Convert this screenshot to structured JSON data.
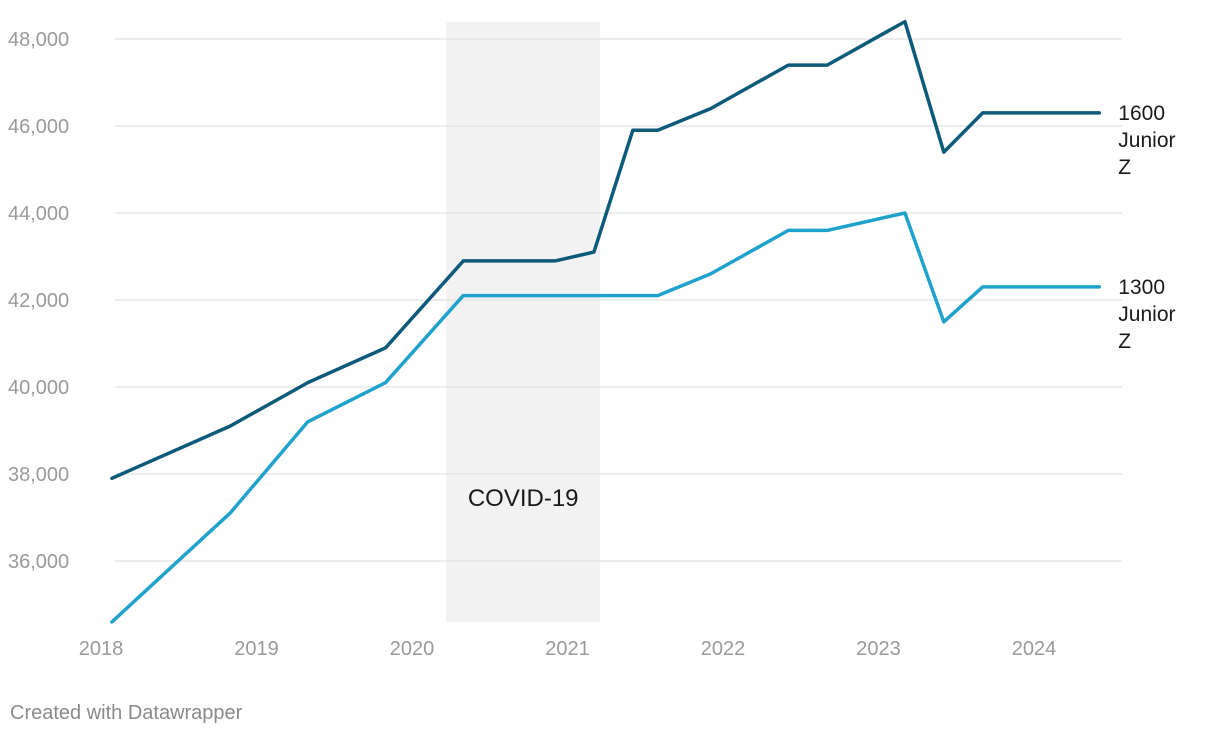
{
  "chart_data": {
    "type": "line",
    "title": "",
    "xlabel": "",
    "ylabel": "",
    "ylim": [
      34600,
      48400
    ],
    "xlim": [
      2018.0,
      2024.55
    ],
    "grid": true,
    "y_ticks": [
      36000,
      38000,
      40000,
      42000,
      44000,
      46000,
      48000
    ],
    "y_tick_labels": [
      "36,000",
      "38,000",
      "40,000",
      "42,000",
      "44,000",
      "46,000",
      "48,000"
    ],
    "x_ticks": [
      2018,
      2019,
      2020,
      2021,
      2022,
      2023,
      2024
    ],
    "x_tick_labels": [
      "2018",
      "2019",
      "2020",
      "2021",
      "2022",
      "2023",
      "2024"
    ],
    "highlight_band": {
      "x_start": 2020.22,
      "x_end": 2021.21,
      "label": "COVID-19",
      "color": "#f2f2f2"
    },
    "series": [
      {
        "name": "1600 Junior Z",
        "name_lines": [
          "1600",
          "Junior",
          "Z"
        ],
        "color": "#0d5a7a",
        "points": [
          [
            2018.07,
            37900
          ],
          [
            2018.83,
            39100
          ],
          [
            2019.33,
            40100
          ],
          [
            2019.83,
            40900
          ],
          [
            2020.33,
            42900
          ],
          [
            2020.92,
            42900
          ],
          [
            2021.17,
            43100
          ],
          [
            2021.42,
            45900
          ],
          [
            2021.58,
            45900
          ],
          [
            2021.92,
            46400
          ],
          [
            2022.42,
            47400
          ],
          [
            2022.67,
            47400
          ],
          [
            2023.17,
            48400
          ],
          [
            2023.42,
            45400
          ],
          [
            2023.67,
            46300
          ],
          [
            2024.42,
            46300
          ]
        ]
      },
      {
        "name": "1300 Junior Z",
        "name_lines": [
          "1300",
          "Junior",
          "Z"
        ],
        "color": "#1fa2cc",
        "points": [
          [
            2018.07,
            34600
          ],
          [
            2018.83,
            37100
          ],
          [
            2019.33,
            39200
          ],
          [
            2019.83,
            40100
          ],
          [
            2020.33,
            42100
          ],
          [
            2020.92,
            42100
          ],
          [
            2021.17,
            42100
          ],
          [
            2021.42,
            42100
          ],
          [
            2021.58,
            42100
          ],
          [
            2021.92,
            42600
          ],
          [
            2022.42,
            43600
          ],
          [
            2022.67,
            43600
          ],
          [
            2023.17,
            44000
          ],
          [
            2023.42,
            41500
          ],
          [
            2023.67,
            42300
          ],
          [
            2024.42,
            42300
          ]
        ]
      }
    ]
  },
  "footer": {
    "credit": "Created with Datawrapper"
  },
  "colors": {
    "grid": "#e2e2e2",
    "tick_text": "#9a9a9a",
    "label_text": "#1a1a1a"
  }
}
